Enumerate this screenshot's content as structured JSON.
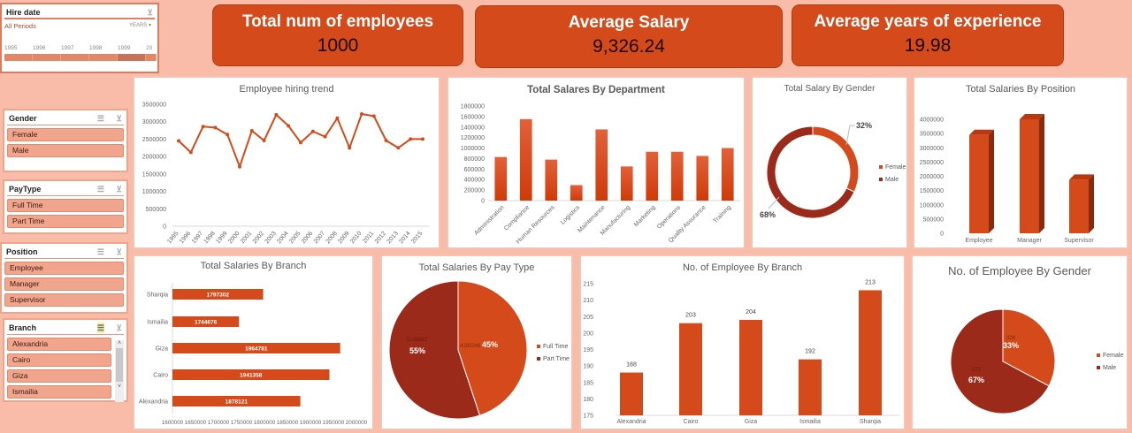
{
  "colors": {
    "accent": "#d44a1a",
    "dark": "#9c2a1a",
    "background": "#f8bca8"
  },
  "timeline": {
    "title": "Hire date",
    "period": "All Periods",
    "level": "YEARS",
    "years": [
      "1995",
      "1996",
      "1997",
      "1998",
      "1999",
      "20"
    ]
  },
  "kpis": [
    {
      "title": "Total num of employees",
      "value": "1000"
    },
    {
      "title": "Average Salary",
      "value": "9,326.24"
    },
    {
      "title": "Average years of experience",
      "value": "19.98"
    }
  ],
  "slicers": {
    "gender": {
      "title": "Gender",
      "items": [
        "Female",
        "Male"
      ]
    },
    "paytype": {
      "title": "PayType",
      "items": [
        "Full Time",
        "Part Time"
      ]
    },
    "position": {
      "title": "Position",
      "items": [
        "Employee",
        "Manager",
        "Supervisor"
      ]
    },
    "branch": {
      "title": "Branch",
      "items": [
        "Alexandria",
        "Cairo",
        "Giza",
        "Ismailia"
      ]
    }
  },
  "chart_data": [
    {
      "id": "hiring",
      "type": "line",
      "title": "Employee hiring trend",
      "x": [
        "1995",
        "1996",
        "1997",
        "1998",
        "1999",
        "2000",
        "2001",
        "2002",
        "2003",
        "2004",
        "2005",
        "2006",
        "2007",
        "2008",
        "2009",
        "2010",
        "2011",
        "2012",
        "2013",
        "2014",
        "2015"
      ],
      "values": [
        2450000,
        2120000,
        2860000,
        2830000,
        2630000,
        1710000,
        2740000,
        2460000,
        3200000,
        2880000,
        2400000,
        2720000,
        2570000,
        3100000,
        2250000,
        3220000,
        3160000,
        2460000,
        2250000,
        2500000,
        2500000
      ],
      "ylim": [
        0,
        3500000
      ],
      "yticks": [
        "0",
        "500000",
        "1000000",
        "1500000",
        "2000000",
        "2500000",
        "3000000",
        "3500000"
      ]
    },
    {
      "id": "dept",
      "type": "bar",
      "title": "Total Salares By Department",
      "categories": [
        "Administration",
        "Compliance",
        "Human Resources",
        "Logistics",
        "Maintenance",
        "Manufacturing",
        "Marketing",
        "Operations",
        "Quality Assurance",
        "Training"
      ],
      "values": [
        830000,
        1550000,
        780000,
        295000,
        1355000,
        650000,
        930000,
        930000,
        850000,
        1000000
      ],
      "ylim": [
        0,
        1800000
      ],
      "yticks": [
        "0",
        "200000",
        "400000",
        "600000",
        "800000",
        "1000000",
        "1200000",
        "1400000",
        "1600000",
        "1800000"
      ]
    },
    {
      "id": "salgender",
      "type": "pie",
      "title": "Total Salary By Gender",
      "donut": true,
      "categories": [
        "Female",
        "Male"
      ],
      "values": [
        32,
        68
      ],
      "labels": [
        "32%",
        "68%"
      ]
    },
    {
      "id": "position",
      "type": "bar",
      "title": "Total Salaries By Position",
      "categories": [
        "Employee",
        "Manager",
        "Supervisor"
      ],
      "values": [
        3450000,
        4000000,
        1880000
      ],
      "ylim": [
        0,
        4000000
      ],
      "yticks": [
        "0",
        "500000",
        "1000000",
        "1500000",
        "2000000",
        "2500000",
        "3000000",
        "3500000",
        "4000000"
      ]
    },
    {
      "id": "branchsal",
      "type": "bar",
      "orientation": "horizontal",
      "title": "Total Salaries By Branch",
      "categories": [
        "Sharqia",
        "Ismailia",
        "Giza",
        "Cairo",
        "Alexandria"
      ],
      "values": [
        1797302,
        1744676,
        1964781,
        1941358,
        1878121
      ],
      "labels": [
        "1797302",
        "1744676",
        "1964781",
        "1941358",
        "1878121"
      ],
      "xlim": [
        1600000,
        2000000
      ],
      "xticks": [
        "1600000",
        "1650000",
        "1700000",
        "1750000",
        "1800000",
        "1850000",
        "1900000",
        "1950000",
        "2000000"
      ]
    },
    {
      "id": "paytype",
      "type": "pie",
      "title": "Total Salaries By Pay Type",
      "categories": [
        "Full Time",
        "Part Time"
      ],
      "values": [
        4190246,
        5135992
      ],
      "labels": [
        "4190246",
        "5135992"
      ],
      "percents": [
        "45%",
        "55%"
      ]
    },
    {
      "id": "empbranch",
      "type": "bar",
      "title": "No. of Employee By Branch",
      "categories": [
        "Alexandria",
        "Cairo",
        "Giza",
        "Ismailia",
        "Sharqia"
      ],
      "values": [
        188,
        203,
        204,
        192,
        213
      ],
      "labels": [
        "188",
        "203",
        "204",
        "192",
        "213"
      ],
      "ylim": [
        175,
        215
      ],
      "yticks": [
        "175",
        "180",
        "185",
        "190",
        "195",
        "200",
        "205",
        "210",
        "215"
      ]
    },
    {
      "id": "empgender",
      "type": "pie",
      "title": "No. of Employee By Gender",
      "categories": [
        "Female",
        "Male"
      ],
      "values": [
        328,
        672
      ],
      "labels": [
        "328",
        "672"
      ],
      "percents": [
        "33%",
        "67%"
      ]
    }
  ]
}
